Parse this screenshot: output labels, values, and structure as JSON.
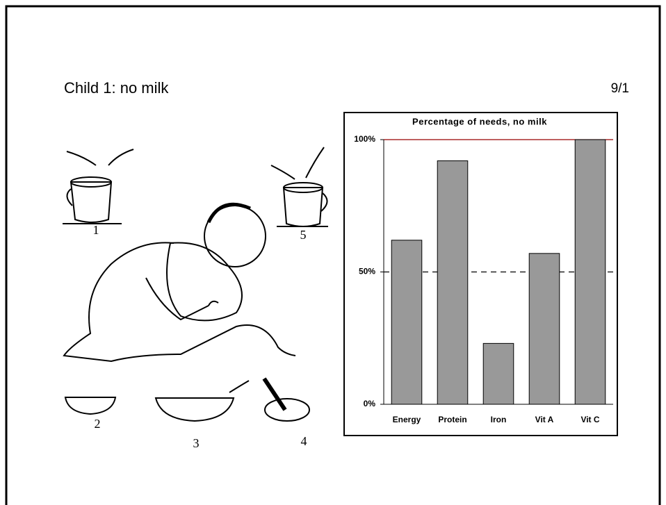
{
  "slide": {
    "title": "Child 1: no milk",
    "page_number": "9/1"
  },
  "illustration": {
    "labels": [
      "1",
      "5",
      "2",
      "3",
      "4"
    ]
  },
  "chart_data": {
    "type": "bar",
    "title": "Percentage of needs, no milk",
    "categories": [
      "Energy",
      "Protein",
      "Iron",
      "Vit A",
      "Vit C"
    ],
    "values": [
      62,
      92,
      23,
      57,
      100
    ],
    "color": "#999999",
    "ylim": [
      0,
      100
    ],
    "yticks": [
      {
        "value": 0,
        "label": "0%"
      },
      {
        "value": 50,
        "label": "50%"
      },
      {
        "value": 100,
        "label": "100%"
      }
    ],
    "reference_lines": [
      {
        "value": 100,
        "color": "#990000",
        "style": "solid"
      },
      {
        "value": 50,
        "color": "#000000",
        "style": "dashed"
      }
    ]
  }
}
